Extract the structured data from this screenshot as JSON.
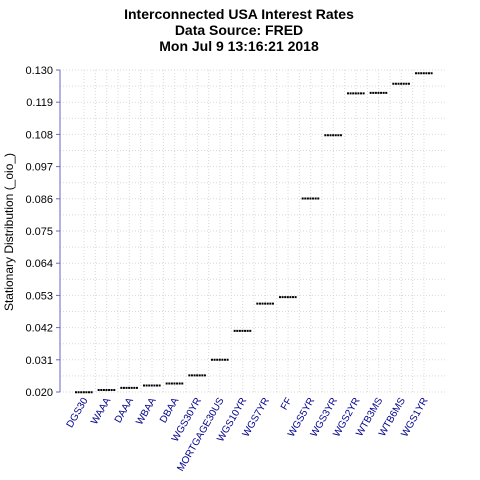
{
  "chart_data": {
    "type": "scatter",
    "title_lines": [
      "Interconnected USA Interest Rates",
      "Data Source: FRED",
      "Mon Jul  9 13:16:21 2018"
    ],
    "xlabel": "",
    "ylabel": "Stationary Distribution (_oio_)",
    "categories": [
      "DGS30",
      "WAAA",
      "DAAA",
      "WBAA",
      "DBAA",
      "WGS30YR",
      "MORTGAGE30US",
      "WGS10YR",
      "WGS7YR",
      "FF",
      "WGS5YR",
      "WGS3YR",
      "WGS2YR",
      "WTB3MS",
      "WTB6MS",
      "WGS1YR"
    ],
    "values": [
      0.0199,
      0.0207,
      0.0214,
      0.0222,
      0.0229,
      0.0257,
      0.031,
      0.0409,
      0.0502,
      0.0524,
      0.0861,
      0.1077,
      0.122,
      0.1222,
      0.1253,
      0.1289
    ],
    "yticks": [
      "0.020",
      "0.031",
      "0.042",
      "0.053",
      "0.064",
      "0.075",
      "0.086",
      "0.097",
      "0.108",
      "0.119",
      "0.130"
    ],
    "ylim": [
      0.02,
      0.13
    ],
    "grid": true,
    "colors": {
      "axis": "#6666cc",
      "marks": "#000000",
      "grid": "#d9d9d9",
      "xtick_label": "#00008b"
    }
  }
}
